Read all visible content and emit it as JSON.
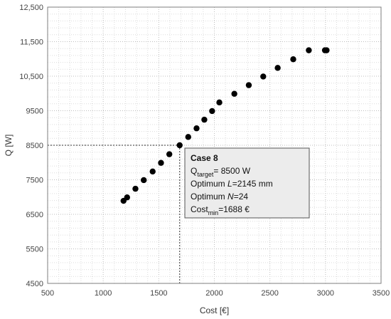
{
  "chart_data": {
    "type": "scatter",
    "xlabel": "Cost [€]",
    "ylabel": "Q [W]",
    "xlim": [
      500,
      3500
    ],
    "ylim": [
      4500,
      12500
    ],
    "x_ticks": [
      500,
      1000,
      1500,
      2000,
      2500,
      3000,
      3500
    ],
    "x_tick_labels": [
      "500",
      "1000",
      "1500",
      "2000",
      "2500",
      "3000",
      "3500"
    ],
    "y_ticks": [
      4500,
      5500,
      6500,
      7500,
      8500,
      9500,
      10500,
      11500,
      12500
    ],
    "y_tick_labels": [
      "4500",
      "5500",
      "6500",
      "7500",
      "8500",
      "9500",
      "10,500",
      "11,500",
      "12,500"
    ],
    "grid": "dotted",
    "series": [
      {
        "color": "#000000",
        "x": [
          1183,
          1215,
          1290,
          1365,
          1445,
          1520,
          1595,
          1688,
          1765,
          1840,
          1910,
          1980,
          2045,
          2180,
          2310,
          2440,
          2570,
          2710,
          2850,
          2995,
          3010
        ],
        "y": [
          6890,
          6990,
          7240,
          7490,
          7740,
          7990,
          8240,
          8500,
          8740,
          8990,
          9240,
          9490,
          9740,
          9990,
          10240,
          10490,
          10740,
          10990,
          11250,
          11250,
          11250
        ]
      }
    ],
    "reference_point": {
      "x": 1688,
      "y": 8500
    },
    "annotation": {
      "title": "Case 8",
      "q_main": "Q",
      "q_sub": "target",
      "q_value": "= 8500 W",
      "l_prefix": "Optimum ",
      "l_var": "L",
      "l_value": "=2145 mm",
      "n_prefix": "Optimum ",
      "n_var": "N",
      "n_value": "=24",
      "cost_main": "Cost",
      "cost_sub": "min",
      "cost_value": "=1688 €"
    }
  }
}
